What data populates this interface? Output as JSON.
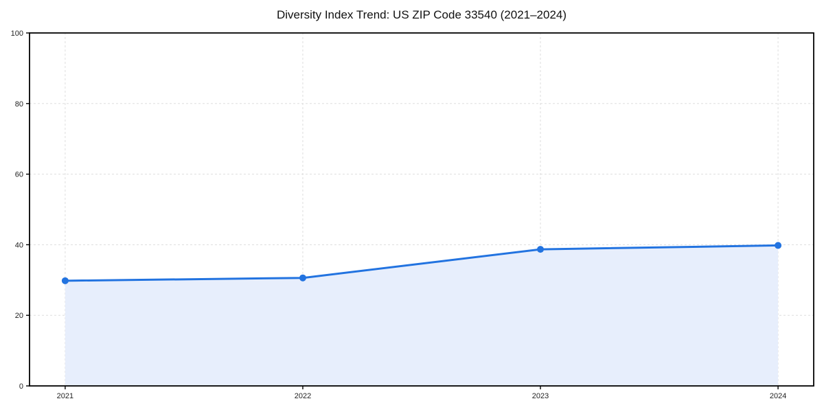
{
  "chart_data": {
    "type": "line",
    "title": "Diversity Index Trend: US ZIP Code 33540 (2021–2024)",
    "x": [
      "2021",
      "2022",
      "2023",
      "2024"
    ],
    "series": [
      {
        "name": "Diversity Index",
        "values": [
          29.8,
          30.6,
          38.7,
          39.8
        ]
      }
    ],
    "xlabel": "",
    "ylabel": "",
    "ylim": [
      0,
      100
    ],
    "yticks": [
      0,
      20,
      40,
      60,
      80,
      100
    ],
    "grid": "dashed-both-axes",
    "legend": "none",
    "area_fill": true,
    "marker": "circle",
    "colors": {
      "line": "#2273e0",
      "marker": "#2273e0",
      "area": "#e7eefc",
      "grid": "#dddddd",
      "axis": "#000000",
      "tick_label": "#222222",
      "title": "#111111",
      "background": "#ffffff"
    }
  }
}
